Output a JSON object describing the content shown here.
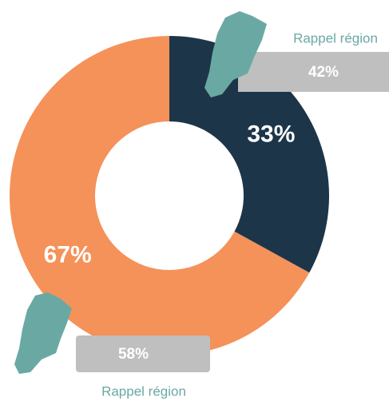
{
  "chart_data": {
    "type": "donut",
    "values": [
      33,
      67
    ],
    "value_labels": [
      "33%",
      "67%"
    ],
    "colors": [
      "#1d3549",
      "#f4925a"
    ],
    "annotations": [
      {
        "text": "Rappel région",
        "label": "42%"
      },
      {
        "text": "Rappel région",
        "label": "58%"
      }
    ]
  }
}
